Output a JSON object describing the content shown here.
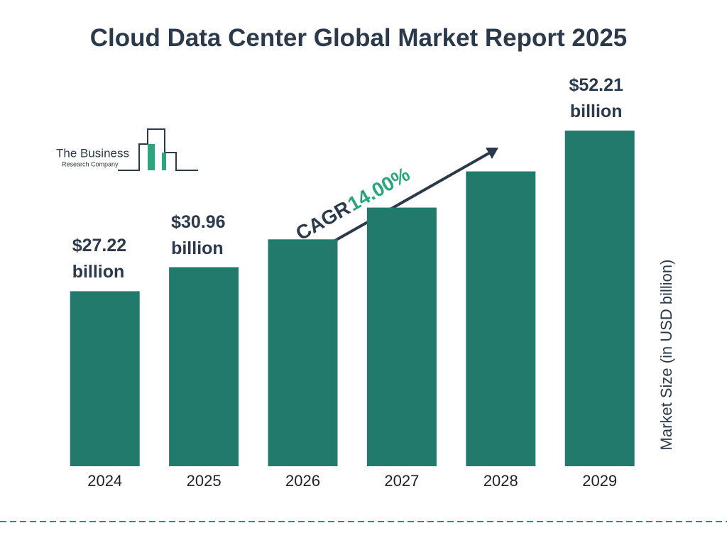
{
  "chart_data": {
    "type": "bar",
    "title": "Cloud Data Center Global Market Report 2025",
    "categories": [
      "2024",
      "2025",
      "2026",
      "2027",
      "2028",
      "2029"
    ],
    "values": [
      27.22,
      30.96,
      35.29,
      40.23,
      45.86,
      52.21
    ],
    "value_labels": [
      "$27.22 billion",
      "$30.96 billion",
      null,
      null,
      null,
      "$52.21 billion"
    ],
    "color": "#217a6b",
    "y_label": "Market Size (in USD billion)",
    "cagr_label": "CAGR",
    "cagr_value": "14.00%"
  },
  "logo": {
    "line1": "The Business",
    "line2": "Research Company"
  }
}
